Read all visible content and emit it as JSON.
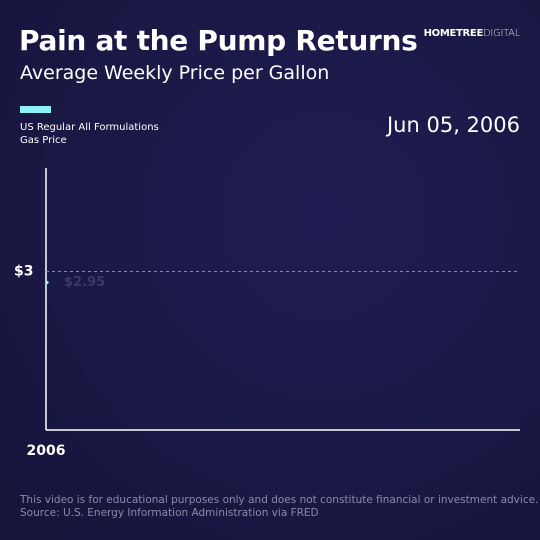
{
  "brand": {
    "bold": "HOMETREE",
    "light": "DIGITAL"
  },
  "chart_data": {
    "type": "line",
    "title": "Pain at the Pump Returns",
    "subtitle": "Average Weekly Price per Gallon",
    "x": [
      "Jun 05, 2006"
    ],
    "xticks": [
      2006
    ],
    "series": [
      {
        "name": "US Regular All Formulations Gas Price",
        "color": "#8ef2fb",
        "values": [
          2.95
        ],
        "value_labels": [
          "$2.95"
        ]
      }
    ],
    "ylim": [
      2.28,
      3.47
    ],
    "yticks": [
      {
        "value": 3,
        "label": "$3"
      }
    ],
    "grid": true
  },
  "footer": {
    "disclaimer": "This video is for educational purposes only and does not constitute financial or investment advice.",
    "source": "Source: U.S. Energy Information Administration via FRED"
  }
}
